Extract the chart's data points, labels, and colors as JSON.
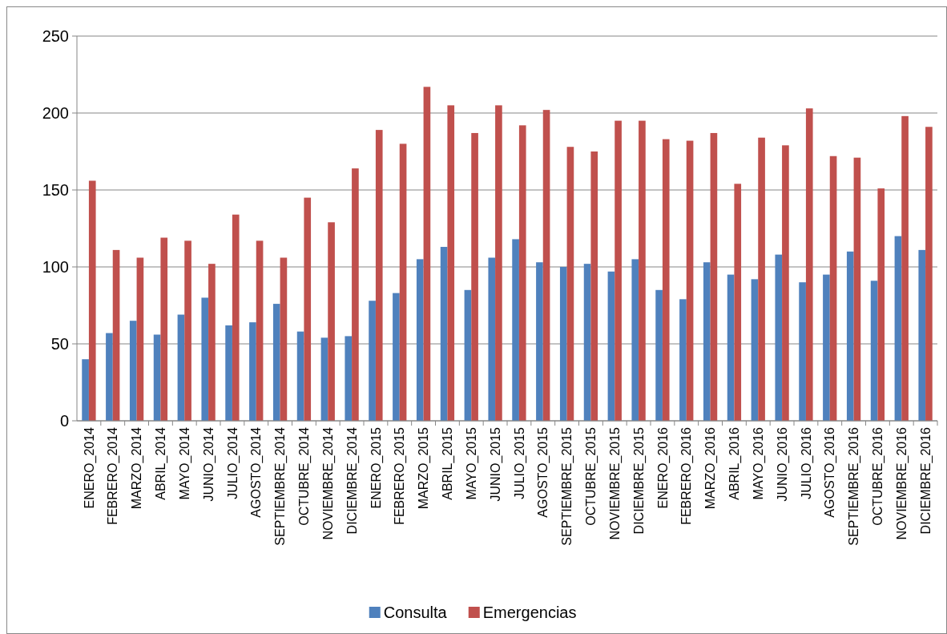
{
  "chart_data": {
    "type": "bar",
    "categories": [
      "ENERO_2014",
      "FEBRERO_2014",
      "MARZO_2014",
      "ABRIL_2014",
      "MAYO_2014",
      "JUNIO_2014",
      "JULIO_2014",
      "AGOSTO_2014",
      "SEPTIEMBRE_2014",
      "OCTUBRE_2014",
      "NOVIEMBRE_2014",
      "DICIEMBRE_2014",
      "ENERO_2015",
      "FEBRERO_2015",
      "MARZO_2015",
      "ABRIL_2015",
      "MAYO_2015",
      "JUNIO_2015",
      "JULIO_2015",
      "AGOSTO_2015",
      "SEPTIEMBRE_2015",
      "OCTUBRE_2015",
      "NOVIEMBRE_2015",
      "DICIEMBRE_2015",
      "ENERO_2016",
      "FEBRERO_2016",
      "MARZO_2016",
      "ABRIL_2016",
      "MAYO_2016",
      "JUNIO_2016",
      "JULIO_2016",
      "AGOSTO_2016",
      "SEPTIEMBRE_2016",
      "OCTUBRE_2016",
      "NOVIEMBRE_2016",
      "DICIEMBRE_2016"
    ],
    "series": [
      {
        "name": "Consulta",
        "color": "#4f81bd",
        "values": [
          40,
          57,
          65,
          56,
          69,
          80,
          62,
          64,
          76,
          58,
          54,
          55,
          78,
          83,
          105,
          113,
          85,
          106,
          118,
          103,
          100,
          102,
          97,
          105,
          85,
          79,
          103,
          95,
          92,
          108,
          90,
          95,
          110,
          91,
          120,
          111
        ]
      },
      {
        "name": "Emergencias",
        "color": "#c0504d",
        "values": [
          156,
          111,
          106,
          119,
          117,
          102,
          134,
          117,
          106,
          145,
          129,
          164,
          189,
          180,
          217,
          205,
          187,
          205,
          192,
          202,
          178,
          175,
          195,
          195,
          183,
          182,
          187,
          154,
          184,
          179,
          203,
          172,
          171,
          151,
          198,
          191
        ]
      }
    ],
    "ylim": [
      0,
      250
    ],
    "yticks": [
      0,
      50,
      100,
      150,
      200,
      250
    ],
    "grid": "y",
    "legend": "bottom"
  }
}
